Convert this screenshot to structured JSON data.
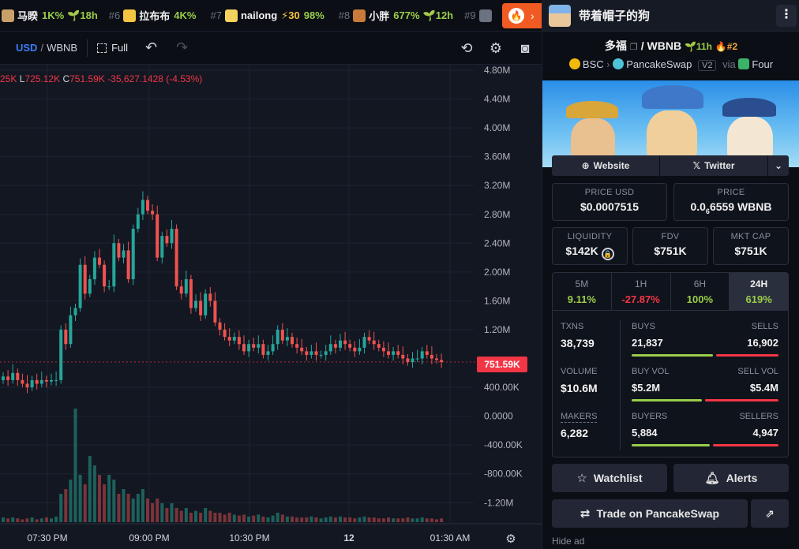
{
  "ticker": [
    {
      "rank": "",
      "name": "马睽",
      "pct": "1K%",
      "age": "18h",
      "color": "#c9a06a",
      "age_icon": "sprout-icon"
    },
    {
      "rank": "#6",
      "name": "拉布布",
      "pct": "4K%",
      "age": "",
      "color": "#f4c542",
      "age_icon": ""
    },
    {
      "rank": "#7",
      "name": "nailong",
      "pct": "98%",
      "age": "",
      "boost": "30",
      "color": "#f4d35e",
      "age_icon": "bolt-icon"
    },
    {
      "rank": "#8",
      "name": "小胖",
      "pct": "677%",
      "age": "12h",
      "color": "#c97a3a",
      "age_icon": "sprout-icon"
    },
    {
      "rank": "#9",
      "name": "",
      "pct": "",
      "age": "",
      "color": "#6b7280",
      "age_icon": ""
    }
  ],
  "toolbar": {
    "currency": "USD",
    "separator": "/",
    "quote": "WBNB",
    "full_label": "Full",
    "undo_icon": "undo-icon",
    "redo_icon": "redo-icon"
  },
  "ohlc": {
    "o_prefix": "25K",
    "l_key": "L",
    "l_val": "725.12K",
    "c_key": "C",
    "c_val": "751.59K",
    "change": "-35,627.1428 (-4.53%)"
  },
  "price_tag": "751.59K",
  "chart_data": {
    "type": "candlestick",
    "quote": "USD",
    "y_axis_labels": [
      "4.80M",
      "4.40M",
      "4.00M",
      "3.60M",
      "3.20M",
      "2.80M",
      "2.40M",
      "2.00M",
      "1.60M",
      "1.20M",
      "751.59K",
      "400.00K",
      "0.0000",
      "-400.00K",
      "-800.00K",
      "-1.20M"
    ],
    "y_ticks": [
      4.8,
      4.4,
      4.0,
      3.6,
      3.2,
      2.8,
      2.4,
      2.0,
      1.6,
      1.2,
      0.4,
      0.0,
      -0.4,
      -0.8,
      -1.2
    ],
    "y_tick_labels": [
      "4.80M",
      "4.40M",
      "4.00M",
      "3.60M",
      "3.20M",
      "2.80M",
      "2.40M",
      "2.00M",
      "1.60M",
      "1.20M",
      "400.00K",
      "0.0000",
      "-400.00K",
      "-800.00K",
      "-1.20M"
    ],
    "x_tick_labels": [
      "07:30 PM",
      "09:00 PM",
      "10:30 PM",
      "12",
      "01:30 AM"
    ],
    "last_price": 0.75159,
    "ylim": [
      -1.45,
      5.0
    ],
    "closes": [
      0.55,
      0.5,
      0.6,
      0.5,
      0.45,
      0.4,
      0.5,
      0.45,
      0.5,
      0.48,
      0.5,
      0.5,
      1.2,
      1.0,
      1.4,
      1.5,
      2.1,
      1.7,
      1.9,
      2.2,
      2.1,
      1.8,
      1.8,
      2.4,
      2.2,
      2.3,
      1.9,
      2.6,
      2.8,
      3.0,
      2.85,
      2.8,
      2.2,
      2.5,
      2.4,
      2.6,
      1.8,
      1.7,
      1.9,
      1.5,
      1.6,
      1.4,
      1.7,
      1.6,
      1.3,
      1.2,
      1.1,
      1.05,
      1.1,
      1.0,
      0.9,
      1.0,
      0.95,
      1.0,
      0.85,
      0.9,
      1.0,
      1.2,
      1.05,
      1.1,
      1.0,
      0.95,
      0.9,
      0.85,
      0.9,
      0.85,
      0.85,
      0.9,
      1.0,
      0.95,
      1.05,
      1.0,
      0.95,
      0.9,
      0.95,
      1.1,
      1.05,
      1.0,
      0.95,
      0.9,
      0.85,
      0.9,
      0.85,
      0.8,
      0.75,
      0.8,
      0.8,
      0.9,
      0.85,
      0.8,
      0.78,
      0.75
    ],
    "volumes": [
      0.05,
      0.04,
      0.05,
      0.04,
      0.03,
      0.04,
      0.05,
      0.03,
      0.04,
      0.05,
      0.04,
      0.06,
      0.3,
      0.35,
      0.45,
      1.2,
      0.5,
      0.4,
      0.7,
      0.6,
      0.5,
      0.4,
      0.5,
      0.45,
      0.3,
      0.35,
      0.3,
      0.25,
      0.3,
      0.35,
      0.25,
      0.2,
      0.25,
      0.2,
      0.15,
      0.2,
      0.15,
      0.12,
      0.15,
      0.1,
      0.12,
      0.1,
      0.15,
      0.12,
      0.1,
      0.1,
      0.08,
      0.1,
      0.08,
      0.07,
      0.08,
      0.06,
      0.07,
      0.08,
      0.06,
      0.05,
      0.07,
      0.1,
      0.08,
      0.06,
      0.06,
      0.05,
      0.05,
      0.05,
      0.06,
      0.05,
      0.04,
      0.05,
      0.06,
      0.05,
      0.06,
      0.05,
      0.05,
      0.04,
      0.05,
      0.06,
      0.05,
      0.05,
      0.04,
      0.04,
      0.05,
      0.04,
      0.04,
      0.04,
      0.05,
      0.04,
      0.04,
      0.05,
      0.04,
      0.04,
      0.03,
      0.04
    ]
  },
  "panel": {
    "token_name": "带着帽子的狗",
    "pair_base": "多福",
    "pair_sep": "/",
    "pair_quote": "WBNB",
    "pair_age": "11h",
    "pair_rank": "#2",
    "chain": "BSC",
    "chevron": "›",
    "dex": "PancakeSwap",
    "dex_version": "V2",
    "via": "via",
    "launchpad": "Four",
    "website_label": "Website",
    "twitter_label": "Twitter",
    "price_usd_label": "PRICE USD",
    "price_usd": "$0.0007515",
    "price_label": "PRICE",
    "price_native_a": "0.0",
    "price_native_sub": "6",
    "price_native_b": "6559 WBNB",
    "liquidity_label": "LIQUIDITY",
    "liquidity": "$142K",
    "fdv_label": "FDV",
    "fdv": "$751K",
    "mktcap_label": "MKT CAP",
    "mktcap": "$751K",
    "timeframes": [
      {
        "label": "5M",
        "value": "9.11%",
        "tone": "grn"
      },
      {
        "label": "1H",
        "value": "-27.87%",
        "tone": "red"
      },
      {
        "label": "6H",
        "value": "100%",
        "tone": "grn"
      },
      {
        "label": "24H",
        "value": "619%",
        "tone": "grn"
      }
    ],
    "txns_label": "TXNS",
    "txns": "38,739",
    "buys_label": "BUYS",
    "buys": "21,837",
    "sells_label": "SELLS",
    "sells": "16,902",
    "volume_label": "VOLUME",
    "volume": "$10.6M",
    "buyvol_label": "BUY VOL",
    "buyvol": "$5.2M",
    "sellvol_label": "SELL VOL",
    "sellvol": "$5.4M",
    "makers_label": "MAKERS",
    "makers": "6,282",
    "buyers_label": "BUYERS",
    "buyers": "5,884",
    "sellers_label": "SELLERS",
    "sellers": "4,947",
    "buys_ratio": 0.564,
    "buyvol_ratio": 0.49,
    "buyers_ratio": 0.543,
    "watchlist_label": "Watchlist",
    "alerts_label": "Alerts",
    "trade_label": "Trade on PancakeSwap",
    "hide_ad": "Hide ad",
    "colors": {
      "green": "#9acd4a",
      "red": "#f23645",
      "accent": "#f15a22",
      "blue": "#3d7cf5"
    }
  }
}
